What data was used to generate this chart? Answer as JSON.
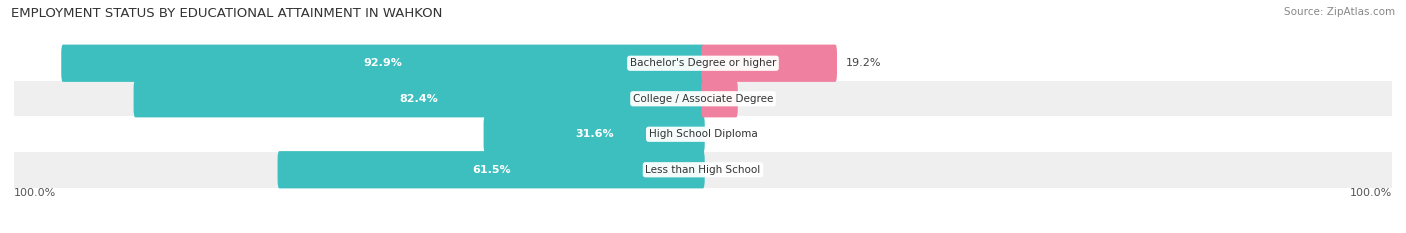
{
  "title": "EMPLOYMENT STATUS BY EDUCATIONAL ATTAINMENT IN WAHKON",
  "source": "Source: ZipAtlas.com",
  "categories": [
    "Less than High School",
    "High School Diploma",
    "College / Associate Degree",
    "Bachelor's Degree or higher"
  ],
  "labor_force": [
    61.5,
    31.6,
    82.4,
    92.9
  ],
  "unemployed": [
    0.0,
    0.0,
    4.8,
    19.2
  ],
  "labor_force_color": "#3dbfbf",
  "unemployed_color": "#f080a0",
  "row_bg_colors": [
    "#efefef",
    "#ffffff",
    "#efefef",
    "#ffffff"
  ],
  "axis_label_left": "100.0%",
  "axis_label_right": "100.0%",
  "max_value": 100.0,
  "title_fontsize": 9.5,
  "source_fontsize": 7.5,
  "label_fontsize": 8,
  "bar_label_fontsize": 8,
  "category_fontsize": 7.5,
  "legend_fontsize": 8
}
